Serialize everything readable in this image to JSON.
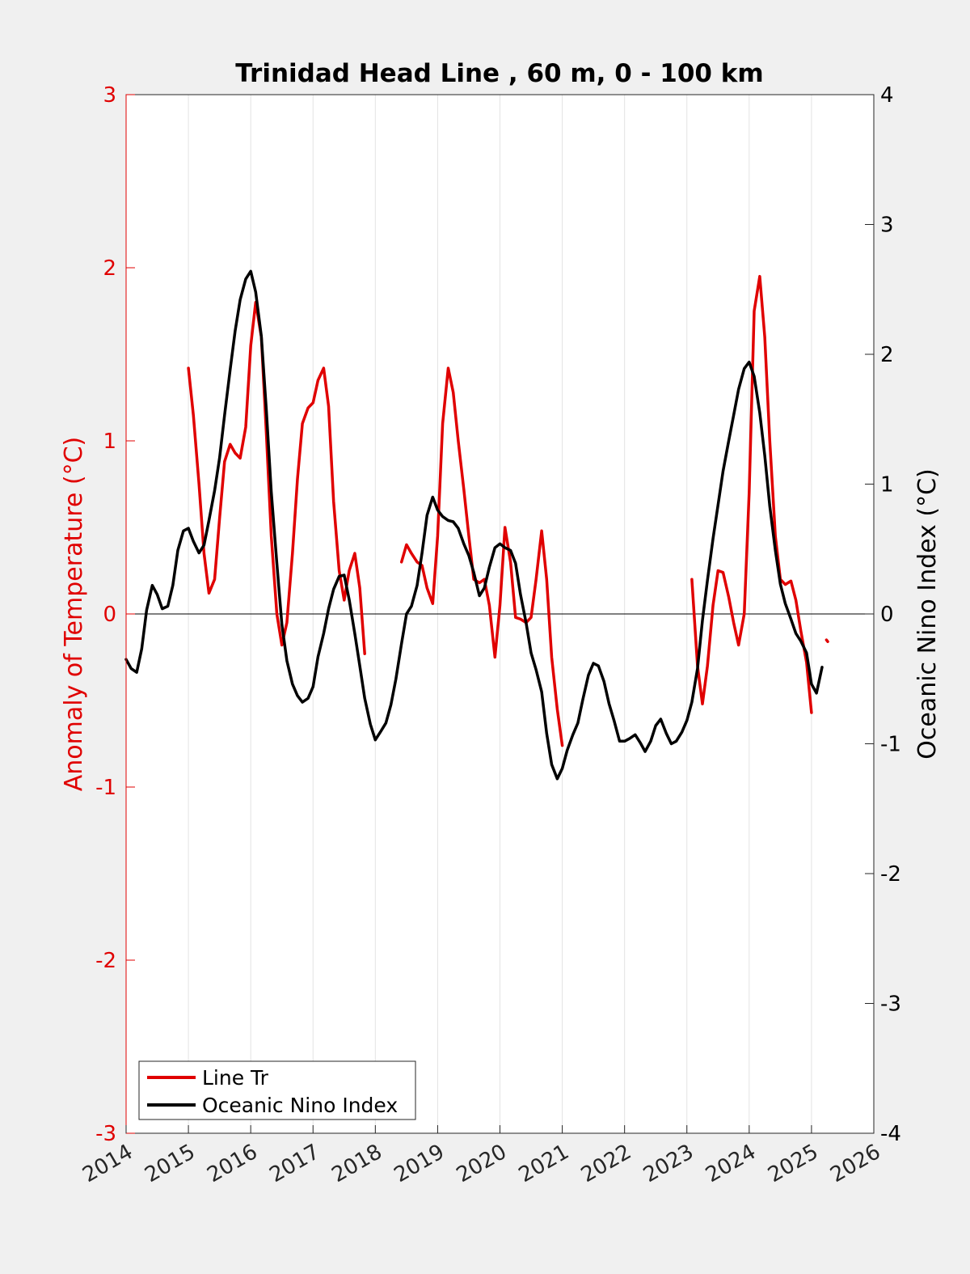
{
  "chart_data": {
    "type": "line",
    "title": "Trinidad Head Line , 60 m, 0 - 100 km",
    "xlim": [
      2014,
      2026
    ],
    "x_ticks": [
      "2014",
      "2015",
      "2016",
      "2017",
      "2018",
      "2019",
      "2020",
      "2021",
      "2022",
      "2023",
      "2024",
      "2025",
      "2026"
    ],
    "y_left": {
      "label": "Anomaly of Temperature (°C)",
      "ylim": [
        -3,
        3
      ],
      "ticks": [
        "-3",
        "-2",
        "-1",
        "0",
        "1",
        "2",
        "3"
      ],
      "color": "#e00000"
    },
    "y_right": {
      "label": "Oceanic Nino Index (°C)",
      "ylim": [
        -4,
        4
      ],
      "ticks": [
        "-4",
        "-3",
        "-2",
        "-1",
        "0",
        "1",
        "2",
        "3",
        "4"
      ],
      "color": "#000000"
    },
    "grid": "vertical",
    "zero_line": true,
    "legend_position": "bottom-left",
    "series": [
      {
        "name": "Line Tr",
        "axis": "left",
        "color": "#e00000",
        "segments": [
          [
            [
              2015.0,
              1.42
            ],
            [
              2015.08,
              1.15
            ],
            [
              2015.17,
              0.75
            ],
            [
              2015.25,
              0.35
            ],
            [
              2015.33,
              0.12
            ],
            [
              2015.42,
              0.2
            ],
            [
              2015.5,
              0.55
            ],
            [
              2015.58,
              0.88
            ],
            [
              2015.67,
              0.98
            ],
            [
              2015.75,
              0.93
            ],
            [
              2015.83,
              0.9
            ],
            [
              2015.92,
              1.08
            ],
            [
              2016.0,
              1.55
            ],
            [
              2016.08,
              1.8
            ],
            [
              2016.17,
              1.6
            ],
            [
              2016.25,
              1.05
            ],
            [
              2016.33,
              0.45
            ],
            [
              2016.42,
              0.0
            ],
            [
              2016.5,
              -0.18
            ],
            [
              2016.58,
              -0.05
            ],
            [
              2016.67,
              0.35
            ],
            [
              2016.75,
              0.78
            ],
            [
              2016.83,
              1.1
            ],
            [
              2016.92,
              1.19
            ],
            [
              2017.0,
              1.22
            ],
            [
              2017.08,
              1.35
            ],
            [
              2017.17,
              1.42
            ],
            [
              2017.25,
              1.2
            ],
            [
              2017.33,
              0.65
            ],
            [
              2017.42,
              0.25
            ],
            [
              2017.5,
              0.08
            ],
            [
              2017.58,
              0.25
            ],
            [
              2017.67,
              0.35
            ],
            [
              2017.75,
              0.15
            ],
            [
              2017.83,
              -0.23
            ]
          ],
          [
            [
              2018.42,
              0.3
            ],
            [
              2018.5,
              0.4
            ],
            [
              2018.58,
              0.35
            ],
            [
              2018.67,
              0.3
            ],
            [
              2018.75,
              0.28
            ],
            [
              2018.83,
              0.15
            ],
            [
              2018.92,
              0.06
            ],
            [
              2019.0,
              0.45
            ],
            [
              2019.08,
              1.1
            ],
            [
              2019.17,
              1.42
            ],
            [
              2019.25,
              1.28
            ],
            [
              2019.33,
              1.0
            ],
            [
              2019.42,
              0.72
            ],
            [
              2019.5,
              0.45
            ],
            [
              2019.58,
              0.2
            ],
            [
              2019.67,
              0.18
            ],
            [
              2019.75,
              0.2
            ],
            [
              2019.83,
              0.05
            ],
            [
              2019.92,
              -0.25
            ],
            [
              2020.0,
              0.05
            ],
            [
              2020.08,
              0.5
            ],
            [
              2020.17,
              0.3
            ],
            [
              2020.25,
              -0.02
            ],
            [
              2020.33,
              -0.03
            ],
            [
              2020.42,
              -0.05
            ],
            [
              2020.5,
              -0.02
            ],
            [
              2020.58,
              0.2
            ],
            [
              2020.67,
              0.48
            ],
            [
              2020.75,
              0.2
            ],
            [
              2020.83,
              -0.25
            ],
            [
              2020.92,
              -0.55
            ],
            [
              2021.0,
              -0.76
            ]
          ],
          [
            [
              2023.08,
              0.2
            ],
            [
              2023.17,
              -0.3
            ],
            [
              2023.25,
              -0.52
            ],
            [
              2023.33,
              -0.3
            ],
            [
              2023.42,
              0.05
            ],
            [
              2023.5,
              0.25
            ],
            [
              2023.58,
              0.24
            ],
            [
              2023.67,
              0.1
            ],
            [
              2023.75,
              -0.05
            ],
            [
              2023.83,
              -0.18
            ],
            [
              2023.92,
              0.0
            ],
            [
              2024.0,
              0.7
            ],
            [
              2024.08,
              1.75
            ],
            [
              2024.17,
              1.95
            ],
            [
              2024.25,
              1.6
            ],
            [
              2024.33,
              1.0
            ],
            [
              2024.42,
              0.45
            ],
            [
              2024.5,
              0.2
            ],
            [
              2024.58,
              0.17
            ],
            [
              2024.67,
              0.19
            ],
            [
              2024.75,
              0.08
            ],
            [
              2024.83,
              -0.1
            ],
            [
              2024.92,
              -0.28
            ],
            [
              2025.0,
              -0.57
            ]
          ],
          [
            [
              2025.24,
              -0.15
            ],
            [
              2025.26,
              -0.16
            ]
          ]
        ]
      },
      {
        "name": "Oceanic Nino Index",
        "axis": "right",
        "color": "#000000",
        "segments": [
          [
            [
              2014.0,
              -0.35
            ],
            [
              2014.08,
              -0.42
            ],
            [
              2014.17,
              -0.45
            ],
            [
              2014.25,
              -0.27
            ],
            [
              2014.33,
              0.03
            ],
            [
              2014.42,
              0.22
            ],
            [
              2014.5,
              0.15
            ],
            [
              2014.58,
              0.04
            ],
            [
              2014.67,
              0.06
            ],
            [
              2014.75,
              0.22
            ],
            [
              2014.83,
              0.49
            ],
            [
              2014.92,
              0.64
            ],
            [
              2015.0,
              0.66
            ],
            [
              2015.08,
              0.56
            ],
            [
              2015.17,
              0.47
            ],
            [
              2015.25,
              0.53
            ],
            [
              2015.33,
              0.72
            ],
            [
              2015.42,
              0.95
            ],
            [
              2015.5,
              1.2
            ],
            [
              2015.58,
              1.53
            ],
            [
              2015.67,
              1.88
            ],
            [
              2015.75,
              2.18
            ],
            [
              2015.83,
              2.42
            ],
            [
              2015.92,
              2.58
            ],
            [
              2016.0,
              2.64
            ],
            [
              2016.08,
              2.48
            ],
            [
              2016.17,
              2.14
            ],
            [
              2016.25,
              1.58
            ],
            [
              2016.33,
              0.94
            ],
            [
              2016.42,
              0.39
            ],
            [
              2016.5,
              -0.08
            ],
            [
              2016.58,
              -0.36
            ],
            [
              2016.67,
              -0.54
            ],
            [
              2016.75,
              -0.63
            ],
            [
              2016.83,
              -0.68
            ],
            [
              2016.92,
              -0.65
            ],
            [
              2017.0,
              -0.56
            ],
            [
              2017.08,
              -0.33
            ],
            [
              2017.17,
              -0.15
            ],
            [
              2017.25,
              0.04
            ],
            [
              2017.33,
              0.19
            ],
            [
              2017.42,
              0.29
            ],
            [
              2017.5,
              0.3
            ],
            [
              2017.58,
              0.11
            ],
            [
              2017.67,
              -0.15
            ],
            [
              2017.75,
              -0.4
            ],
            [
              2017.83,
              -0.65
            ],
            [
              2017.92,
              -0.85
            ],
            [
              2018.0,
              -0.97
            ],
            [
              2018.08,
              -0.91
            ],
            [
              2018.17,
              -0.84
            ],
            [
              2018.25,
              -0.7
            ],
            [
              2018.33,
              -0.5
            ],
            [
              2018.42,
              -0.23
            ],
            [
              2018.5,
              0.0
            ],
            [
              2018.58,
              0.06
            ],
            [
              2018.67,
              0.22
            ],
            [
              2018.75,
              0.47
            ],
            [
              2018.83,
              0.76
            ],
            [
              2018.92,
              0.9
            ],
            [
              2019.0,
              0.8
            ],
            [
              2019.08,
              0.75
            ],
            [
              2019.17,
              0.72
            ],
            [
              2019.25,
              0.71
            ],
            [
              2019.33,
              0.66
            ],
            [
              2019.42,
              0.54
            ],
            [
              2019.5,
              0.45
            ],
            [
              2019.58,
              0.32
            ],
            [
              2019.67,
              0.14
            ],
            [
              2019.75,
              0.2
            ],
            [
              2019.83,
              0.36
            ],
            [
              2019.92,
              0.51
            ],
            [
              2020.0,
              0.54
            ],
            [
              2020.08,
              0.51
            ],
            [
              2020.17,
              0.49
            ],
            [
              2020.25,
              0.39
            ],
            [
              2020.33,
              0.15
            ],
            [
              2020.42,
              -0.07
            ],
            [
              2020.5,
              -0.3
            ],
            [
              2020.58,
              -0.43
            ],
            [
              2020.67,
              -0.6
            ],
            [
              2020.75,
              -0.92
            ],
            [
              2020.83,
              -1.16
            ],
            [
              2020.92,
              -1.27
            ],
            [
              2021.0,
              -1.19
            ],
            [
              2021.08,
              -1.05
            ],
            [
              2021.17,
              -0.93
            ],
            [
              2021.25,
              -0.84
            ],
            [
              2021.33,
              -0.66
            ],
            [
              2021.42,
              -0.47
            ],
            [
              2021.5,
              -0.38
            ],
            [
              2021.58,
              -0.4
            ],
            [
              2021.67,
              -0.52
            ],
            [
              2021.75,
              -0.69
            ],
            [
              2021.83,
              -0.82
            ],
            [
              2021.92,
              -0.98
            ],
            [
              2022.0,
              -0.98
            ],
            [
              2022.08,
              -0.96
            ],
            [
              2022.17,
              -0.93
            ],
            [
              2022.25,
              -0.99
            ],
            [
              2022.33,
              -1.06
            ],
            [
              2022.42,
              -0.98
            ],
            [
              2022.5,
              -0.86
            ],
            [
              2022.58,
              -0.81
            ],
            [
              2022.67,
              -0.92
            ],
            [
              2022.75,
              -1.0
            ],
            [
              2022.83,
              -0.98
            ],
            [
              2022.92,
              -0.91
            ],
            [
              2023.0,
              -0.82
            ],
            [
              2023.08,
              -0.68
            ],
            [
              2023.17,
              -0.42
            ],
            [
              2023.25,
              -0.05
            ],
            [
              2023.33,
              0.26
            ],
            [
              2023.42,
              0.58
            ],
            [
              2023.5,
              0.84
            ],
            [
              2023.58,
              1.1
            ],
            [
              2023.67,
              1.33
            ],
            [
              2023.75,
              1.53
            ],
            [
              2023.83,
              1.73
            ],
            [
              2023.92,
              1.89
            ],
            [
              2024.0,
              1.94
            ],
            [
              2024.08,
              1.83
            ],
            [
              2024.17,
              1.55
            ],
            [
              2024.25,
              1.22
            ],
            [
              2024.33,
              0.83
            ],
            [
              2024.42,
              0.49
            ],
            [
              2024.5,
              0.23
            ],
            [
              2024.58,
              0.08
            ],
            [
              2024.67,
              -0.04
            ],
            [
              2024.75,
              -0.15
            ],
            [
              2024.83,
              -0.21
            ],
            [
              2024.92,
              -0.3
            ],
            [
              2025.0,
              -0.54
            ],
            [
              2025.08,
              -0.61
            ],
            [
              2025.17,
              -0.41
            ]
          ]
        ]
      }
    ]
  }
}
